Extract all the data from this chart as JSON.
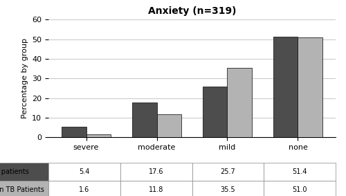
{
  "title": "Anxiety (n=319)",
  "ylabel": "Percentage by group",
  "categories": [
    "severe",
    "moderate",
    "mild",
    "none"
  ],
  "tb_patients": [
    5.4,
    17.6,
    25.7,
    51.4
  ],
  "non_tb_patients": [
    1.6,
    11.8,
    35.5,
    51.0
  ],
  "tb_color": "#4d4d4d",
  "non_tb_color": "#b3b3b3",
  "ylim": [
    0,
    60
  ],
  "yticks": [
    0,
    10,
    20,
    30,
    40,
    50,
    60
  ],
  "bar_width": 0.35,
  "legend_labels": [
    "TB patients",
    "Non TB Patients"
  ],
  "table_tb_label": "TB patients",
  "table_non_tb_label": "Non TB Patients",
  "background_color": "#ffffff",
  "grid_color": "#cccccc"
}
